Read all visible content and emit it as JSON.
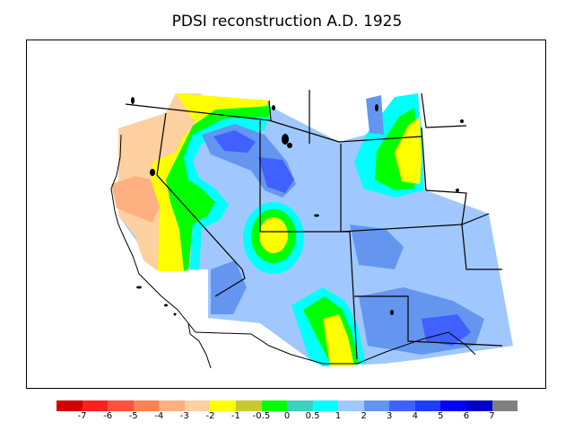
{
  "title": "PDSI reconstruction A.D. 1925",
  "legend": {
    "colors": [
      "#d40000",
      "#ff2020",
      "#ff5040",
      "#ff8050",
      "#ffb080",
      "#ffd0a0",
      "#ffff00",
      "#c8c830",
      "#00ff00",
      "#40d0c0",
      "#00ffff",
      "#a0c8ff",
      "#6496f0",
      "#4060ff",
      "#1e3cff",
      "#0000ff",
      "#0000c8",
      "#808080"
    ],
    "tick_labels": [
      "-7",
      "-6",
      "-5",
      "-4",
      "-3",
      "-2",
      "-1",
      "-0.5",
      "0",
      "0.5",
      "1",
      "2",
      "3",
      "4",
      "5",
      "6",
      "7"
    ]
  }
}
